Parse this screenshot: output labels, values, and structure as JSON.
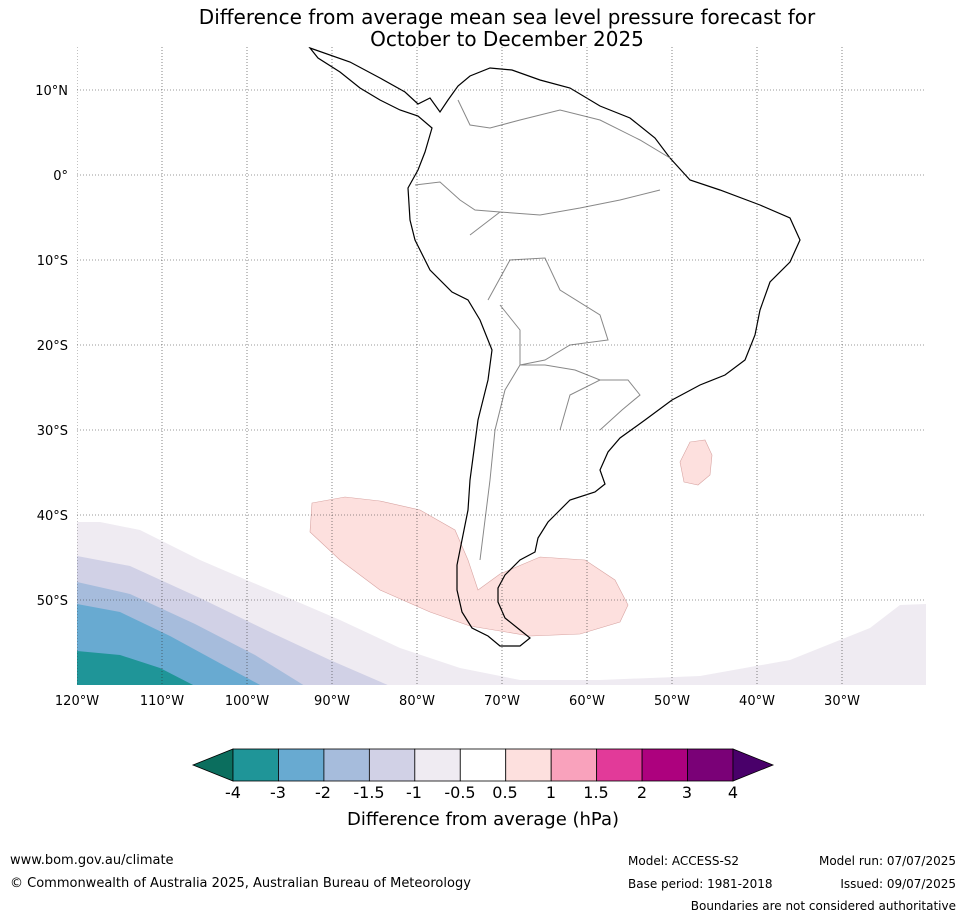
{
  "title": {
    "line1": "Difference from average mean sea level pressure forecast for",
    "line2": "October to December 2025"
  },
  "map": {
    "lat_labels": [
      "10°N",
      "0°",
      "10°S",
      "20°S",
      "30°S",
      "40°S",
      "50°S"
    ],
    "lon_labels": [
      "120°W",
      "110°W",
      "100°W",
      "90°W",
      "80°W",
      "70°W",
      "60°W",
      "50°W",
      "40°W",
      "30°W"
    ],
    "extent": {
      "lon": [
        -120,
        -20
      ],
      "lat": [
        -60,
        15
      ]
    }
  },
  "colorbar": {
    "title": "Difference from average (hPa)",
    "tick_labels": [
      "-4",
      "-3",
      "-2",
      "-1.5",
      "-1",
      "-0.5",
      "0.5",
      "1",
      "1.5",
      "2",
      "3",
      "4"
    ],
    "colors": {
      "below_min": "#0b6e5e",
      "bins": [
        "#1f9598",
        "#68aad1",
        "#a6bcdc",
        "#d1d1e6",
        "#efebf2",
        "#ffffff",
        "#fde0de",
        "#f9a2bc",
        "#e23a99",
        "#ad017e",
        "#7a0177"
      ],
      "above_max": "#49006a"
    }
  },
  "footer": {
    "website": "www.bom.gov.au/climate",
    "copyright": "© Commonwealth of Australia 2025, Australian Bureau of Meteorology",
    "model": "Model: ACCESS-S2",
    "base_period": "Base period: 1981-2018",
    "model_run": "Model run: 07/07/2025",
    "issued": "Issued: 09/07/2025",
    "boundaries_note": "Boundaries are not considered authoritative"
  }
}
